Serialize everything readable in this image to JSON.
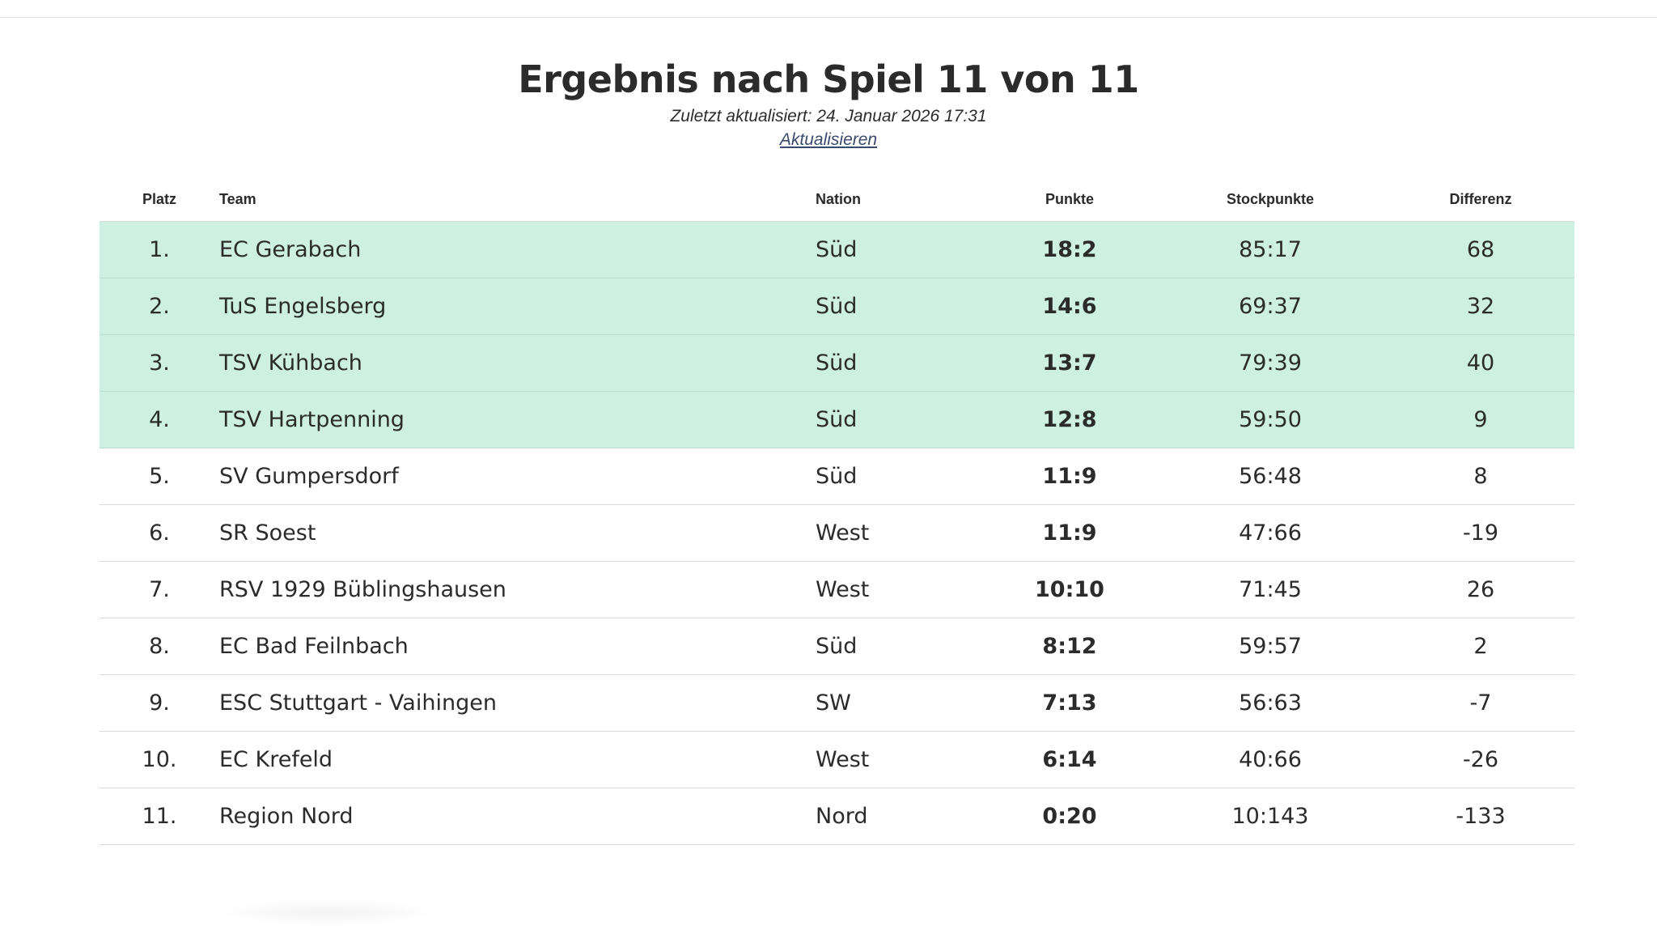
{
  "header": {
    "title": "Ergebnis nach Spiel 11 von 11",
    "updated": "Zuletzt aktualisiert: 24. Januar 2026 17:31",
    "refresh_label": "Aktualisieren"
  },
  "table": {
    "columns": [
      "Platz",
      "Team",
      "Nation",
      "Punkte",
      "Stockpunkte",
      "Differenz"
    ],
    "rows": [
      {
        "platz": "1.",
        "team": "EC Gerabach",
        "nation": "Süd",
        "punkte": "18:2",
        "stock": "85:17",
        "diff": "68",
        "highlight": true
      },
      {
        "platz": "2.",
        "team": "TuS Engelsberg",
        "nation": "Süd",
        "punkte": "14:6",
        "stock": "69:37",
        "diff": "32",
        "highlight": true
      },
      {
        "platz": "3.",
        "team": "TSV Kühbach",
        "nation": "Süd",
        "punkte": "13:7",
        "stock": "79:39",
        "diff": "40",
        "highlight": true
      },
      {
        "platz": "4.",
        "team": "TSV Hartpenning",
        "nation": "Süd",
        "punkte": "12:8",
        "stock": "59:50",
        "diff": "9",
        "highlight": true
      },
      {
        "platz": "5.",
        "team": "SV Gumpersdorf",
        "nation": "Süd",
        "punkte": "11:9",
        "stock": "56:48",
        "diff": "8",
        "highlight": false
      },
      {
        "platz": "6.",
        "team": "SR Soest",
        "nation": "West",
        "punkte": "11:9",
        "stock": "47:66",
        "diff": "-19",
        "highlight": false
      },
      {
        "platz": "7.",
        "team": "RSV 1929 Büblingshausen",
        "nation": "West",
        "punkte": "10:10",
        "stock": "71:45",
        "diff": "26",
        "highlight": false
      },
      {
        "platz": "8.",
        "team": "EC Bad Feilnbach",
        "nation": "Süd",
        "punkte": "8:12",
        "stock": "59:57",
        "diff": "2",
        "highlight": false
      },
      {
        "platz": "9.",
        "team": "ESC Stuttgart - Vaihingen",
        "nation": "SW",
        "punkte": "7:13",
        "stock": "56:63",
        "diff": "-7",
        "highlight": false
      },
      {
        "platz": "10.",
        "team": "EC Krefeld",
        "nation": "West",
        "punkte": "6:14",
        "stock": "40:66",
        "diff": "-26",
        "highlight": false
      },
      {
        "platz": "11.",
        "team": "Region Nord",
        "nation": "Nord",
        "punkte": "0:20",
        "stock": "10:143",
        "diff": "-133",
        "highlight": false
      }
    ]
  },
  "colors": {
    "highlight_row": "#cdf0e2",
    "text": "#2b2b2b",
    "link": "#3b4a6b"
  }
}
